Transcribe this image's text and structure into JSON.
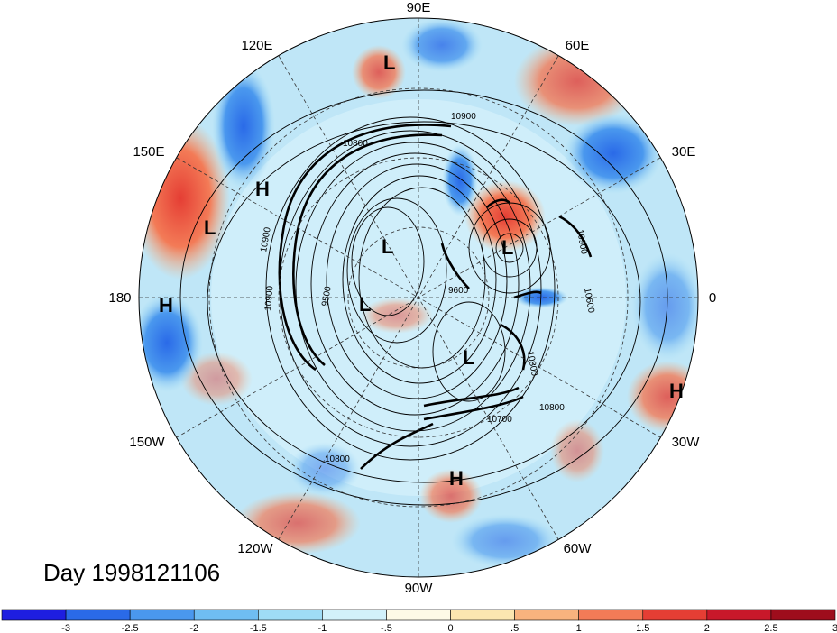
{
  "title": "Day 1998121106",
  "longitude_labels": [
    "90E",
    "60E",
    "30E",
    "0",
    "30W",
    "60W",
    "90W",
    "120W",
    "150W",
    "180",
    "150E",
    "120E"
  ],
  "pressure_systems": [
    {
      "type": "L"
    },
    {
      "type": "H"
    },
    {
      "type": "L"
    },
    {
      "type": "H"
    },
    {
      "type": "L"
    },
    {
      "type": "L"
    },
    {
      "type": "L"
    },
    {
      "type": "L"
    },
    {
      "type": "H"
    },
    {
      "type": "H"
    }
  ],
  "contour_labels": [
    "10900",
    "10800",
    "10900",
    "10900",
    "9500",
    "9600",
    "10600",
    "10800",
    "10700",
    "10800",
    "10800",
    "10900"
  ],
  "colorbar": {
    "ticks": [
      "-3",
      "-2.5",
      "-2",
      "-1.5",
      "-1",
      "-.5",
      "0",
      ".5",
      "1",
      "1.5",
      "2",
      "2.5",
      "3"
    ],
    "colors": [
      "#1e1ee0",
      "#2a6ae8",
      "#4a98ee",
      "#6fbdf2",
      "#9fdcf6",
      "#d2f1fa",
      "#fefae6",
      "#fbe6b0",
      "#f8b37e",
      "#f37b57",
      "#e53e34",
      "#c8182a",
      "#9e0d1c"
    ]
  }
}
